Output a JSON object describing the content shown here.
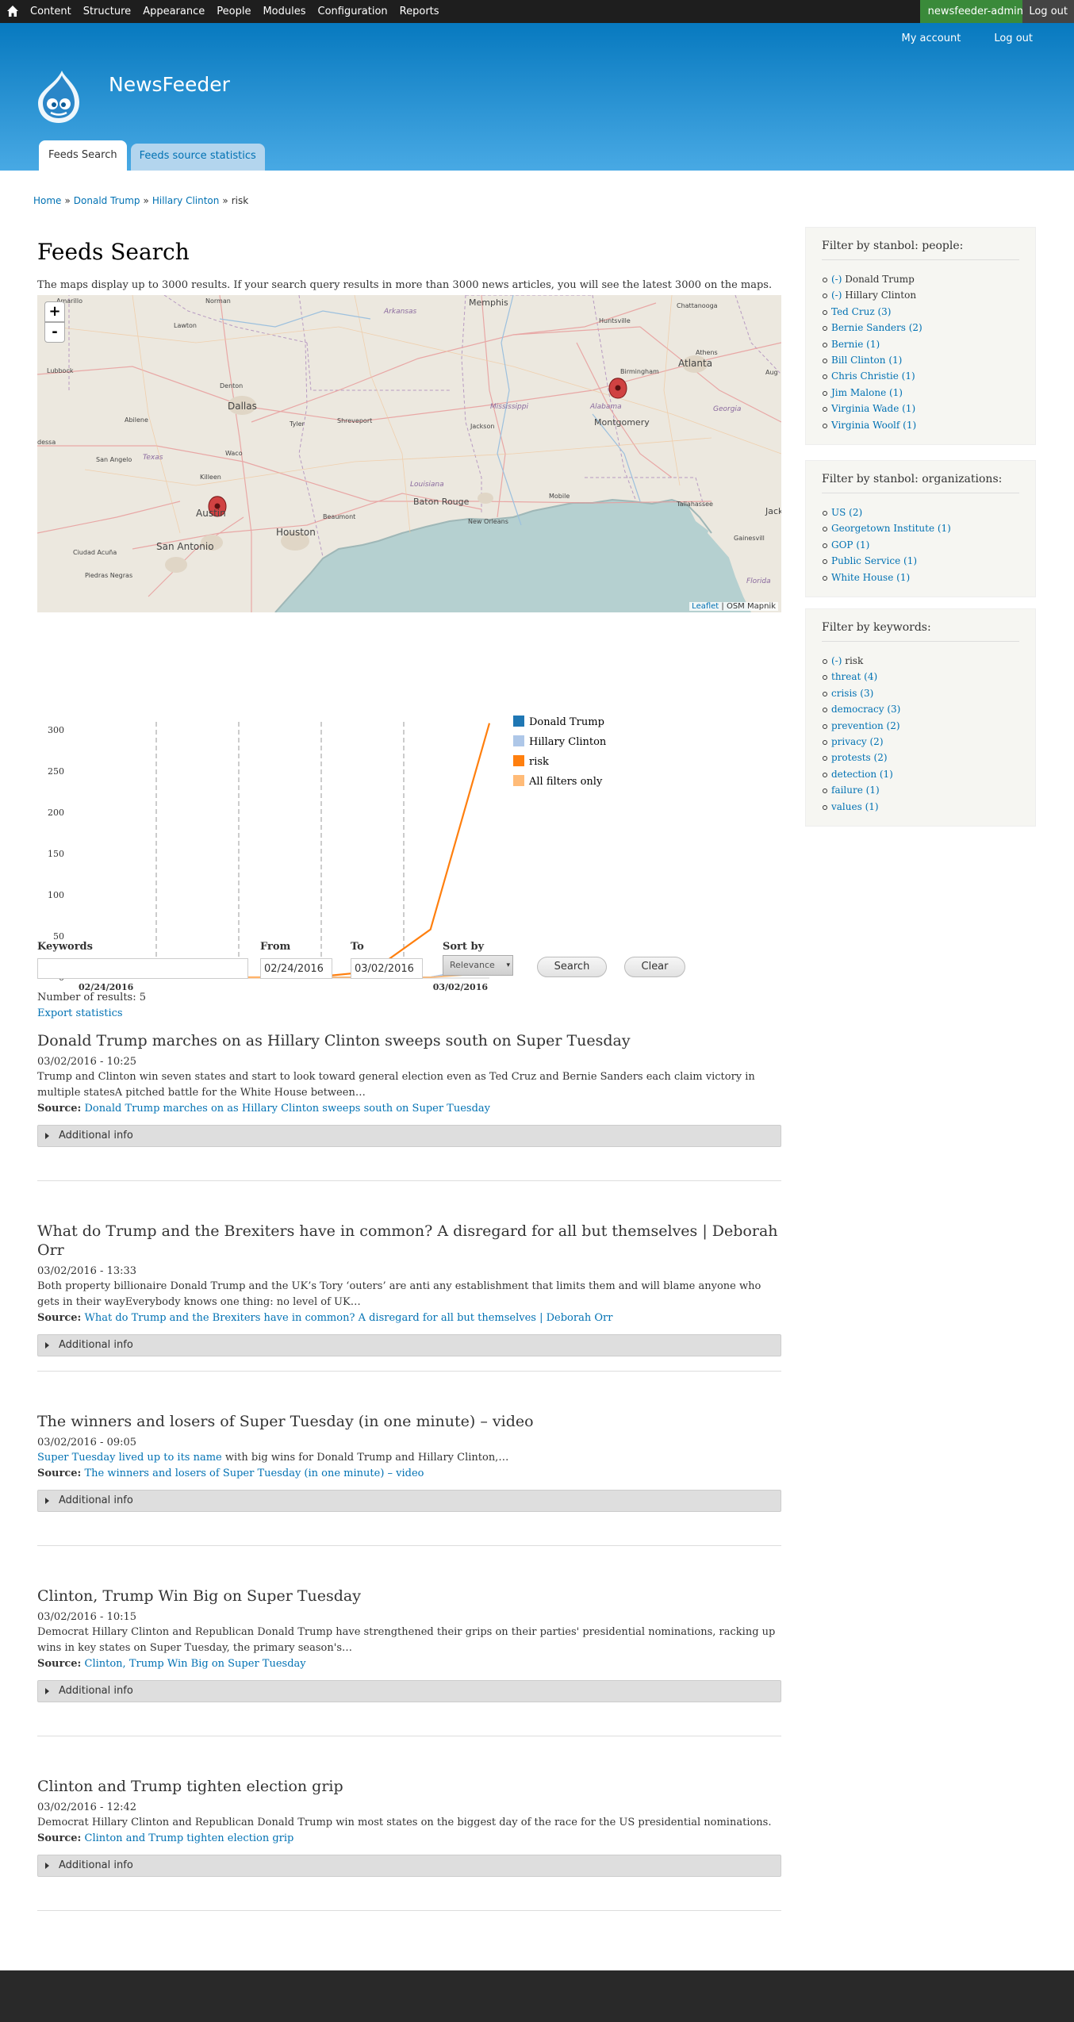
{
  "toolbar": {
    "menu": [
      "Content",
      "Structure",
      "Appearance",
      "People",
      "Modules",
      "Configuration",
      "Reports"
    ],
    "user": "newsfeeder-admin",
    "logout": "Log out"
  },
  "header": {
    "secondary": [
      "My account",
      "Log out"
    ],
    "site_name": "NewsFeeder",
    "tabs": [
      "Feeds Search",
      "Feeds source statistics"
    ]
  },
  "breadcrumb": {
    "items": [
      "Home",
      "Donald Trump",
      "Hillary Clinton"
    ],
    "current": "risk"
  },
  "main": {
    "title": "Feeds Search",
    "map_note": "The maps display up to 3000 results. If your search query results in more than 3000 news articles, you will see the latest 3000 on the maps.",
    "map": {
      "zoom_in": "+",
      "zoom_out": "-",
      "attribution_link": "Leaflet",
      "attribution_text": " | OSM Mapnik",
      "cities": [
        {
          "name": "Amarillo",
          "size": 8
        },
        {
          "name": "Norman",
          "size": 8
        },
        {
          "name": "Memphis",
          "size": 11
        },
        {
          "name": "Chattanooga",
          "size": 8
        },
        {
          "name": "Lawton",
          "size": 8
        },
        {
          "name": "Arkansas",
          "size": 9
        },
        {
          "name": "Huntsville",
          "size": 8
        },
        {
          "name": "Athens",
          "size": 8
        },
        {
          "name": "Lubbock",
          "size": 8
        },
        {
          "name": "Denton",
          "size": 8
        },
        {
          "name": "Birmingham",
          "size": 8
        },
        {
          "name": "Atlanta",
          "size": 12
        },
        {
          "name": "Aug",
          "size": 8
        },
        {
          "name": "Dallas",
          "size": 12
        },
        {
          "name": "Abilene",
          "size": 8
        },
        {
          "name": "Tyler",
          "size": 8
        },
        {
          "name": "Shreveport",
          "size": 8
        },
        {
          "name": "Mississippi",
          "size": 9
        },
        {
          "name": "Alabama",
          "size": 9
        },
        {
          "name": "Georgia",
          "size": 9
        },
        {
          "name": "Montgomery",
          "size": 11
        },
        {
          "name": "Jackson",
          "size": 8
        },
        {
          "name": "Waco",
          "size": 8
        },
        {
          "name": "San Angelo",
          "size": 8
        },
        {
          "name": "Texas",
          "size": 9
        },
        {
          "name": "dessa",
          "size": 8
        },
        {
          "name": "Louisiana",
          "size": 9
        },
        {
          "name": "Killeen",
          "size": 8
        },
        {
          "name": "Baton Rouge",
          "size": 11
        },
        {
          "name": "Mobile",
          "size": 8
        },
        {
          "name": "Tallahassee",
          "size": 8
        },
        {
          "name": "Jack",
          "size": 11
        },
        {
          "name": "Austin",
          "size": 12
        },
        {
          "name": "Beaumont",
          "size": 8
        },
        {
          "name": "New Orleans",
          "size": 8
        },
        {
          "name": "Houston",
          "size": 12
        },
        {
          "name": "San Antonio",
          "size": 12
        },
        {
          "name": "Gainesvill",
          "size": 8
        },
        {
          "name": "Ciudad Acuña",
          "size": 8
        },
        {
          "name": "Piedras Negras",
          "size": 8
        },
        {
          "name": "Florida",
          "size": 9
        }
      ]
    }
  },
  "chart_data": {
    "type": "line",
    "x": [
      "02/24/2016",
      "02/25/2016",
      "02/26/2016",
      "02/27/2016",
      "02/28/2016",
      "02/29/2016",
      "03/01/2016",
      "03/02/2016"
    ],
    "x_tick_labels": [
      "02/24/2016",
      "03/02/2016"
    ],
    "ylim": [
      0,
      300
    ],
    "y_ticks": [
      0,
      50,
      100,
      150,
      200,
      250,
      300
    ],
    "series": [
      {
        "name": "Donald Trump",
        "color": "#1f77b4",
        "values": [
          0,
          0,
          0,
          0,
          0,
          0,
          0,
          12
        ]
      },
      {
        "name": "Hillary Clinton",
        "color": "#aec7e8",
        "values": [
          0,
          0,
          0,
          0,
          0,
          0,
          0,
          14
        ]
      },
      {
        "name": "risk",
        "color": "#ff7f0e",
        "values": [
          0,
          1,
          0,
          0,
          0,
          7,
          58,
          308
        ]
      },
      {
        "name": "All filters only",
        "color": "#ffbb78",
        "values": [
          0,
          0,
          0,
          0,
          0,
          0,
          0,
          5
        ]
      }
    ],
    "legend": "top-right"
  },
  "search": {
    "keywords_label": "Keywords",
    "keywords_value": "",
    "from_label": "From",
    "from_value": "02/24/2016",
    "to_label": "To",
    "to_value": "03/02/2016",
    "sort_label": "Sort by",
    "sort_value": "Relevance",
    "search_button": "Search",
    "clear_button": "Clear"
  },
  "results_meta": {
    "count_text": "Number of results: 5",
    "export": "Export statistics"
  },
  "results": [
    {
      "title": "Donald Trump marches on as Hillary Clinton sweeps south on Super Tuesday",
      "date": "03/02/2016 - 10:25",
      "summary": "Trump and Clinton win seven states and start to look toward general election even as Ted Cruz and Bernie Sanders each claim victory in multiple statesA pitched battle for the White House between…",
      "summary_link": "",
      "source_label": "Source:",
      "source": "Donald Trump marches on as Hillary Clinton sweeps south on Super Tuesday",
      "info": "Additional info"
    },
    {
      "title": "What do Trump and the Brexiters have in common? A disregard for all but themselves | Deborah Orr",
      "date": "03/02/2016 - 13:33",
      "summary": "Both property billionaire Donald Trump and the UK’s Tory ‘outers’ are anti any establishment that limits them and will blame anyone who gets in their wayEverybody knows one thing: no level of UK…",
      "summary_link": "",
      "source_label": "Source:",
      "source": "What do Trump and the Brexiters have in common? A disregard for all but themselves | Deborah Orr",
      "info": "Additional info"
    },
    {
      "title": "The winners and losers of Super Tuesday (in one minute) – video",
      "date": "03/02/2016 - 09:05",
      "summary": " with big wins for Donald Trump and Hillary Clinton,…",
      "summary_link": "Super Tuesday lived up to its name",
      "source_label": "Source:",
      "source": "The winners and losers of Super Tuesday (in one minute) – video",
      "info": "Additional info"
    },
    {
      "title": "Clinton, Trump Win Big on Super Tuesday",
      "date": "03/02/2016 - 10:15",
      "summary": "Democrat Hillary Clinton and Republican Donald Trump have strengthened their grips on their parties' presidential nominations, racking up wins in key states on Super Tuesday, the primary season's…",
      "summary_link": "",
      "source_label": "Source:",
      "source": "Clinton, Trump Win Big on Super Tuesday",
      "info": "Additional info"
    },
    {
      "title": "Clinton and Trump tighten election grip",
      "date": "03/02/2016 - 12:42",
      "summary": "Democrat Hillary Clinton and Republican Donald Trump win most states on the biggest day of the race for the US presidential nominations.",
      "summary_link": "",
      "source_label": "Source:",
      "source": "Clinton and Trump tighten election grip",
      "info": "Additional info"
    }
  ],
  "sidebar": {
    "people": {
      "title": "Filter by stanbol: people:",
      "items": [
        {
          "label": "(-)",
          "text": " Donald Trump",
          "active": true
        },
        {
          "label": "(-)",
          "text": " Hillary Clinton",
          "active": true
        },
        {
          "label": "Ted Cruz (3)",
          "text": "",
          "active": false
        },
        {
          "label": "Bernie Sanders (2)",
          "text": "",
          "active": false
        },
        {
          "label": "Bernie (1)",
          "text": "",
          "active": false
        },
        {
          "label": "Bill Clinton (1)",
          "text": "",
          "active": false
        },
        {
          "label": "Chris Christie (1)",
          "text": "",
          "active": false
        },
        {
          "label": "Jim Malone (1)",
          "text": "",
          "active": false
        },
        {
          "label": "Virginia Wade (1)",
          "text": "",
          "active": false
        },
        {
          "label": "Virginia Woolf (1)",
          "text": "",
          "active": false
        }
      ]
    },
    "organizations": {
      "title": "Filter by stanbol: organizations:",
      "items": [
        {
          "label": "US (2)",
          "text": "",
          "active": false
        },
        {
          "label": "Georgetown Institute (1)",
          "text": "",
          "active": false
        },
        {
          "label": "GOP (1)",
          "text": "",
          "active": false
        },
        {
          "label": "Public Service (1)",
          "text": "",
          "active": false
        },
        {
          "label": "White House (1)",
          "text": "",
          "active": false
        }
      ]
    },
    "keywords": {
      "title": "Filter by keywords:",
      "items": [
        {
          "label": "(-)",
          "text": " risk",
          "active": true
        },
        {
          "label": "threat (4)",
          "text": "",
          "active": false
        },
        {
          "label": "crisis (3)",
          "text": "",
          "active": false
        },
        {
          "label": "democracy (3)",
          "text": "",
          "active": false
        },
        {
          "label": "prevention (2)",
          "text": "",
          "active": false
        },
        {
          "label": "privacy (2)",
          "text": "",
          "active": false
        },
        {
          "label": "protests (2)",
          "text": "",
          "active": false
        },
        {
          "label": "detection (1)",
          "text": "",
          "active": false
        },
        {
          "label": "failure (1)",
          "text": "",
          "active": false
        },
        {
          "label": "values (1)",
          "text": "",
          "active": false
        }
      ]
    }
  },
  "icons": {
    "home": "home-icon",
    "logo": "drupal-drop-icon",
    "marker": "map-marker-icon",
    "disclosure": "triangle-right-icon",
    "dropdown": "chevron-down-icon"
  }
}
